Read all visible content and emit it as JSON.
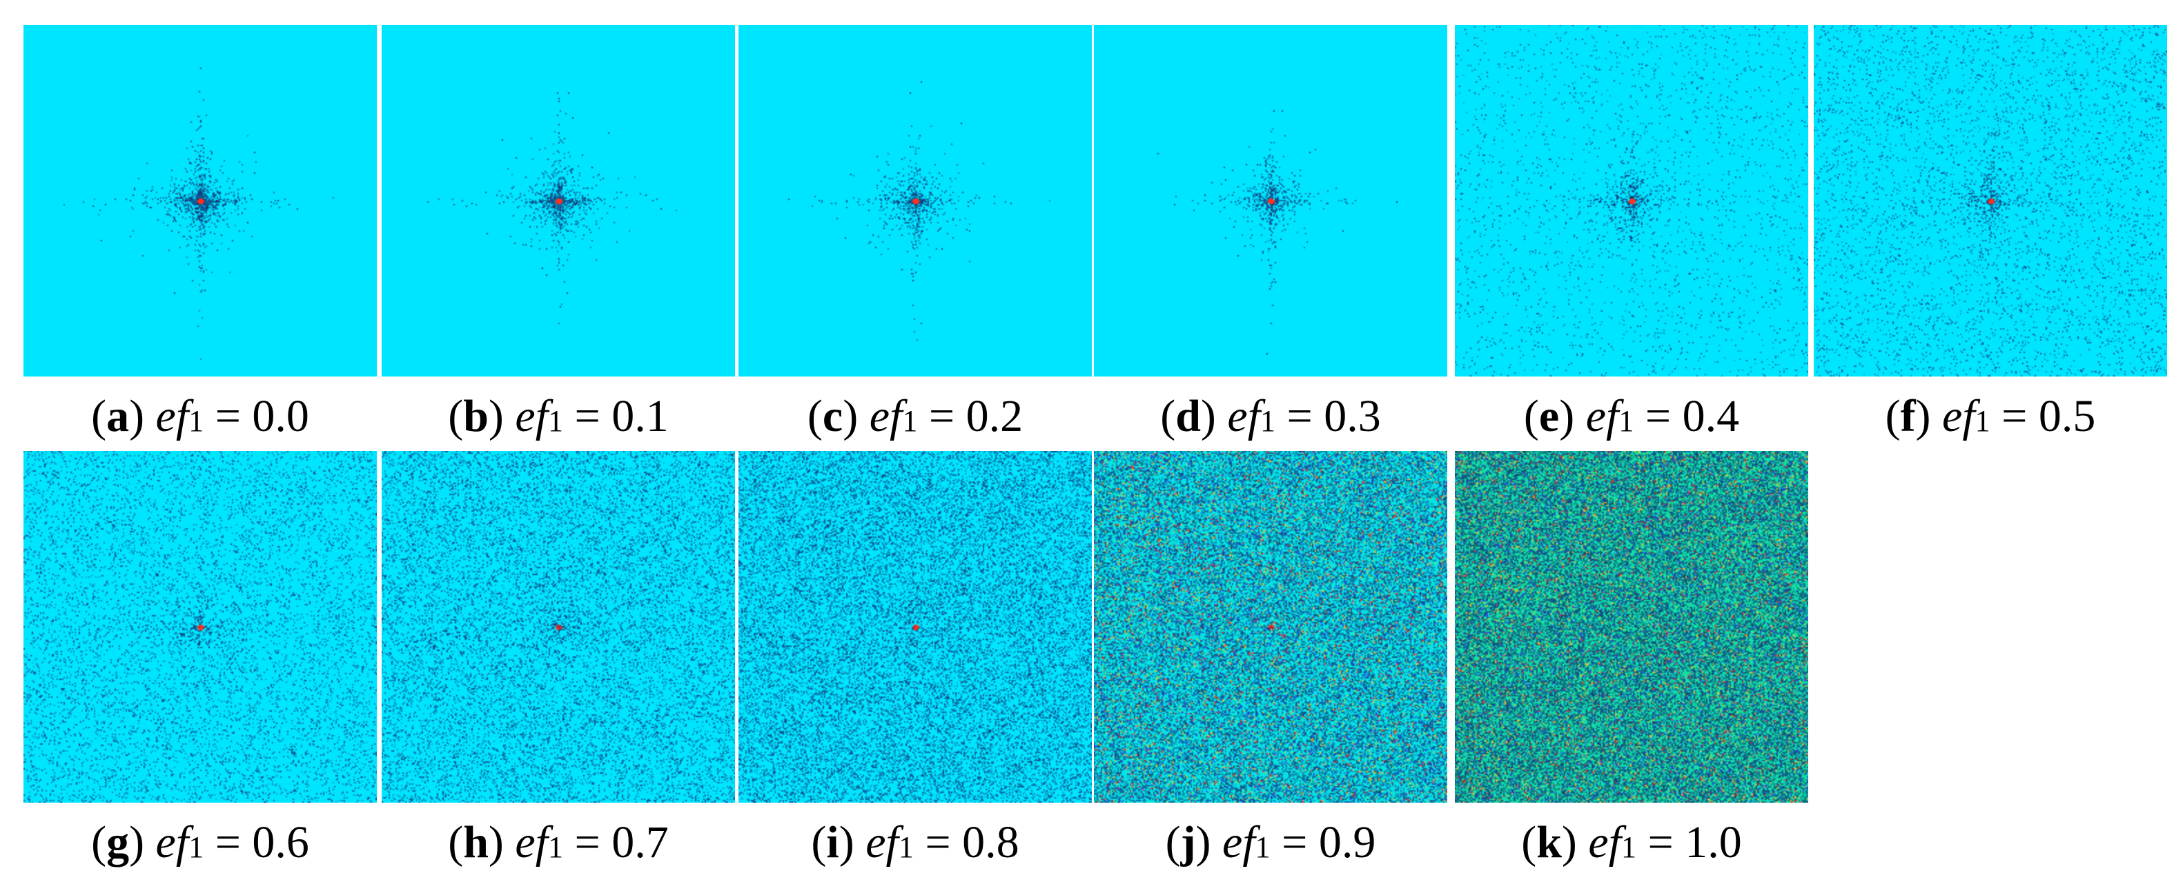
{
  "figure": {
    "panels": [
      {
        "letter": "a",
        "variable": "ef",
        "subscript": "1",
        "equals": "=",
        "value": "0.0",
        "noise": 0.0
      },
      {
        "letter": "b",
        "variable": "ef",
        "subscript": "1",
        "equals": "=",
        "value": "0.1",
        "noise": 0.1
      },
      {
        "letter": "c",
        "variable": "ef",
        "subscript": "1",
        "equals": "=",
        "value": "0.2",
        "noise": 0.2
      },
      {
        "letter": "d",
        "variable": "ef",
        "subscript": "1",
        "equals": "=",
        "value": "0.3",
        "noise": 0.3
      },
      {
        "letter": "e",
        "variable": "ef",
        "subscript": "1",
        "equals": "=",
        "value": "0.4",
        "noise": 0.4
      },
      {
        "letter": "f",
        "variable": "ef",
        "subscript": "1",
        "equals": "=",
        "value": "0.5",
        "noise": 0.5
      },
      {
        "letter": "g",
        "variable": "ef",
        "subscript": "1",
        "equals": "=",
        "value": "0.6",
        "noise": 0.6
      },
      {
        "letter": "h",
        "variable": "ef",
        "subscript": "1",
        "equals": "=",
        "value": "0.7",
        "noise": 0.7
      },
      {
        "letter": "i",
        "variable": "ef",
        "subscript": "1",
        "equals": "=",
        "value": "0.8",
        "noise": 0.8
      },
      {
        "letter": "j",
        "variable": "ef",
        "subscript": "1",
        "equals": "=",
        "value": "0.9",
        "noise": 0.9
      },
      {
        "letter": "k",
        "variable": "ef",
        "subscript": "1",
        "equals": "=",
        "value": "1.0",
        "noise": 1.0
      }
    ],
    "colors": {
      "background_cyan": "#00e5ff",
      "noise_green": "#10e0a8",
      "center_red": "#ff3020",
      "speckle_dark": "#102a6e"
    }
  }
}
